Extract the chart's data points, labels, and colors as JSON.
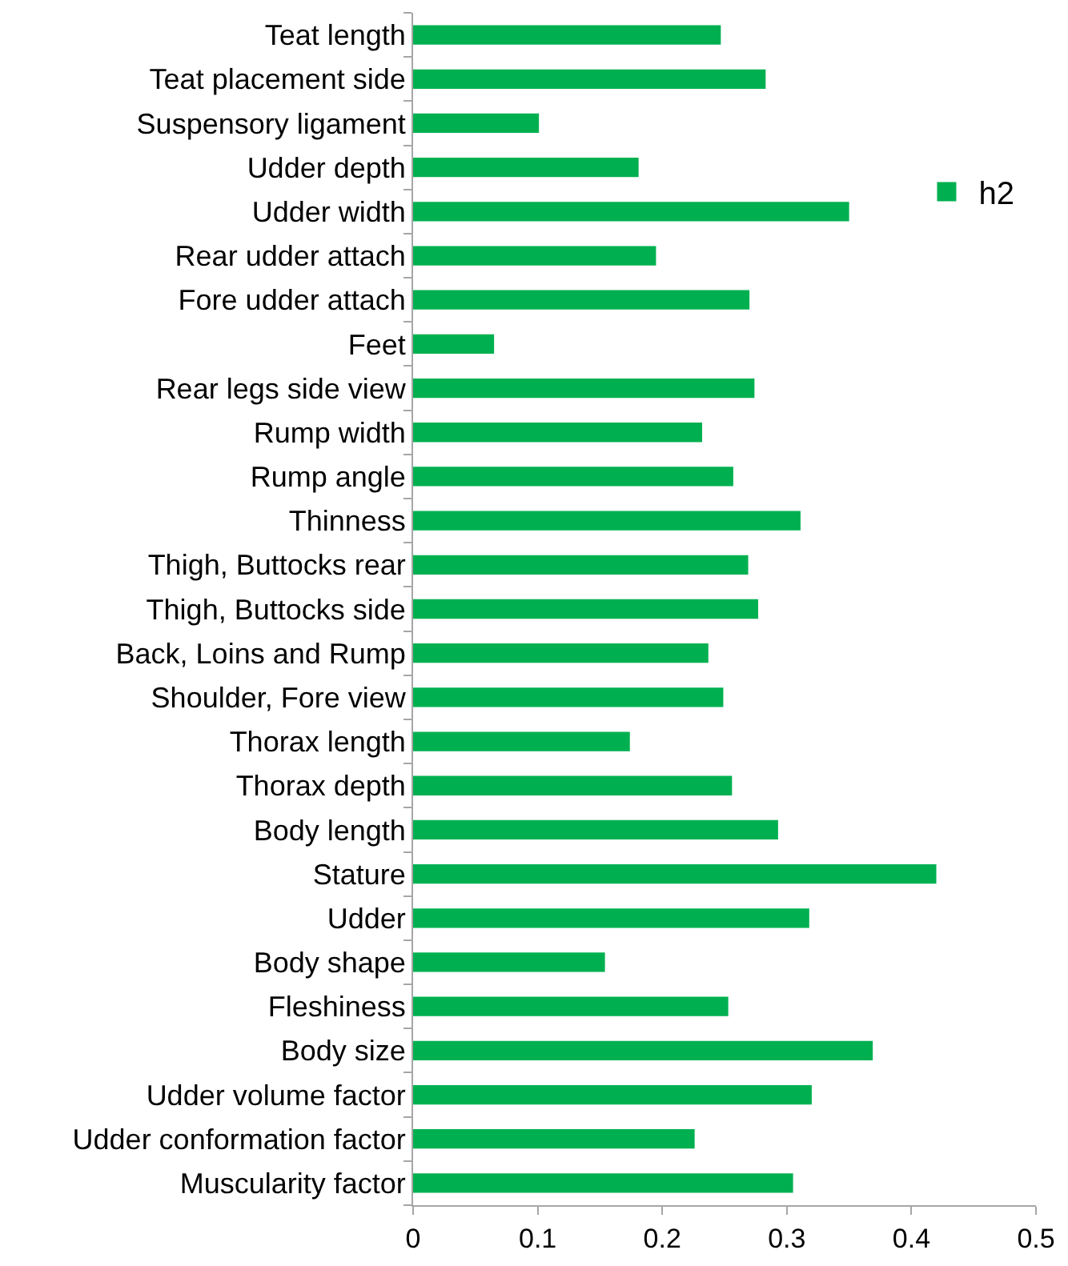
{
  "chart_data": {
    "type": "bar",
    "orientation": "horizontal",
    "categories": [
      "Teat length",
      "Teat placement side",
      "Suspensory ligament",
      "Udder depth",
      "Udder width",
      "Rear udder attach",
      "Fore udder attach",
      "Feet",
      "Rear legs side view",
      "Rump width",
      "Rump angle",
      "Thinness",
      "Thigh, Buttocks rear",
      "Thigh, Buttocks side",
      "Back, Loins and Rump",
      "Shoulder, Fore view",
      "Thorax length",
      "Thorax depth",
      "Body length",
      "Stature",
      "Udder",
      "Body shape",
      "Fleshiness",
      "Body size",
      "Udder volume factor",
      "Udder conformation factor",
      "Muscularity factor"
    ],
    "series": [
      {
        "name": "h2",
        "color": "#00b050",
        "values": [
          0.247,
          0.283,
          0.101,
          0.181,
          0.35,
          0.195,
          0.27,
          0.065,
          0.274,
          0.232,
          0.257,
          0.311,
          0.269,
          0.277,
          0.237,
          0.249,
          0.174,
          0.256,
          0.293,
          0.42,
          0.318,
          0.154,
          0.253,
          0.369,
          0.32,
          0.226,
          0.305
        ]
      }
    ],
    "xlim": [
      0,
      0.5
    ],
    "xticks": [
      0,
      0.1,
      0.2,
      0.3,
      0.4,
      0.5
    ],
    "legend": "top right"
  }
}
